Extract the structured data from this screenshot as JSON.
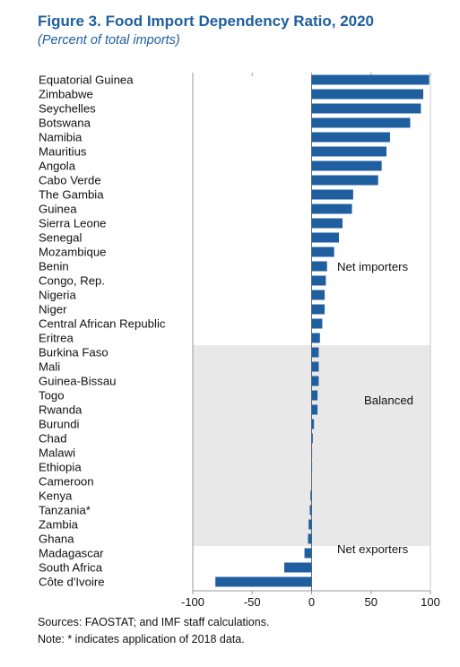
{
  "title": "Figure 3. Food Import Dependency Ratio, 2020",
  "subtitle": "(Percent of total imports)",
  "chart_data": {
    "type": "bar",
    "orientation": "horizontal",
    "categories": [
      "Equatorial Guinea",
      "Zimbabwe",
      "Seychelles",
      "Botswana",
      "Namibia",
      "Mauritius",
      "Angola",
      "Cabo Verde",
      "The Gambia",
      "Guinea",
      "Sierra Leone",
      "Senegal",
      "Mozambique",
      "Benin",
      "Congo, Rep.",
      "Nigeria",
      "Niger",
      "Central African Republic",
      "Eritrea",
      "Burkina Faso",
      "Mali",
      "Guinea-Bissau",
      "Togo",
      "Rwanda",
      "Burundi",
      "Chad",
      "Malawi",
      "Ethiopia",
      "Cameroon",
      "Kenya",
      "Tanzania*",
      "Zambia",
      "Ghana",
      "Madagascar",
      "South Africa",
      "Côte d'Ivoire"
    ],
    "values": [
      99,
      94,
      92,
      83,
      66,
      63,
      59,
      56,
      35,
      34,
      26,
      23,
      19,
      13,
      12,
      11,
      11,
      9,
      7,
      6,
      6,
      6,
      5,
      5,
      2,
      1,
      0.3,
      0.2,
      0,
      -1,
      -1.5,
      -2.5,
      -3,
      -6,
      -23,
      -81
    ],
    "xlim": [
      -100,
      100
    ],
    "xticks": [
      "-100",
      "-50",
      "0",
      "50",
      "100"
    ],
    "bar_color": "#1f5fa0",
    "shaded_region_color": "#e8e8e8",
    "annotations": [
      "Net importers",
      "Balanced",
      "Net exporters"
    ]
  },
  "sources": "Sources: FAOSTAT; and IMF staff calculations.",
  "note": "Note: * indicates application of 2018 data."
}
